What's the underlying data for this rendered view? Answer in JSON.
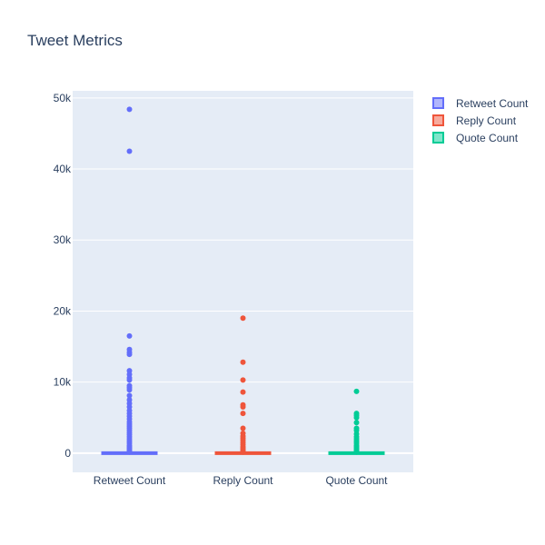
{
  "chart_data": {
    "type": "box",
    "title": "Tweet Metrics",
    "xlabel": "",
    "ylabel": "",
    "ylim": [
      -2700,
      51000
    ],
    "y_ticks": [
      0,
      10000,
      20000,
      30000,
      40000,
      50000
    ],
    "y_tick_labels": [
      "0",
      "10k",
      "20k",
      "30k",
      "40k",
      "50k"
    ],
    "grid": true,
    "legend_position": "top-right",
    "categories": [
      "Retweet Count",
      "Reply Count",
      "Quote Count"
    ],
    "series": [
      {
        "name": "Retweet Count",
        "color": "#636efa",
        "box": {
          "min": 0,
          "q1": 0,
          "median": 0,
          "q3": 0,
          "max": 0
        },
        "outliers": [
          48400,
          42500,
          16500,
          14600,
          14200,
          13900,
          11600,
          11100,
          10600,
          10300,
          9500,
          9200,
          8900,
          8100,
          7500,
          7000,
          6500,
          6000,
          5600,
          5200,
          4800,
          4400,
          4100,
          3800,
          3500,
          3200,
          2900,
          2600,
          2300,
          2000,
          1700,
          1400,
          1100,
          900,
          700,
          500,
          300,
          150
        ]
      },
      {
        "name": "Reply Count",
        "color": "#ef553b",
        "box": {
          "min": 0,
          "q1": 0,
          "median": 0,
          "q3": 0,
          "max": 0
        },
        "outliers": [
          19000,
          12800,
          10300,
          8600,
          6800,
          6500,
          5600,
          3500,
          2800,
          2400,
          2100,
          1800,
          1500,
          1200,
          900,
          700,
          500,
          300,
          150
        ]
      },
      {
        "name": "Quote Count",
        "color": "#00cc96",
        "box": {
          "min": 0,
          "q1": 0,
          "median": 0,
          "q3": 0,
          "max": 0
        },
        "outliers": [
          8700,
          5600,
          5300,
          5000,
          4300,
          3500,
          3200,
          2700,
          2300,
          2000,
          1700,
          1400,
          1100,
          900,
          700,
          500,
          300,
          150
        ]
      }
    ]
  },
  "colors": {
    "plot_background": "#e5ecf6",
    "grid": "#ffffff",
    "text": "#2a3f5f"
  }
}
